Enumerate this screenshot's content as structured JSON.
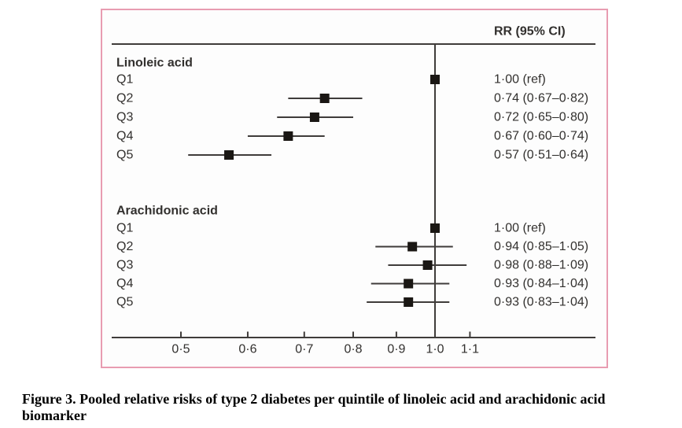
{
  "chart_data": {
    "type": "forest",
    "title": "",
    "column_header": "RR (95% CI)",
    "x_axis": {
      "scale": "log",
      "ticks": [
        0.5,
        0.6,
        0.7,
        0.8,
        0.9,
        1.0,
        1.1
      ],
      "tick_labels": [
        "0·5",
        "0·6",
        "0·7",
        "0·8",
        "0·9",
        "1·0",
        "1·1"
      ],
      "ref_line": 1.0,
      "range": [
        0.41,
        1.55
      ],
      "grid": false
    },
    "groups": [
      {
        "name": "Linoleic acid",
        "rows": [
          {
            "label": "Q1",
            "rr": 1.0,
            "lo": null,
            "hi": null,
            "value_text": "1·00 (ref)"
          },
          {
            "label": "Q2",
            "rr": 0.74,
            "lo": 0.67,
            "hi": 0.82,
            "value_text": "0·74 (0·67–0·82)"
          },
          {
            "label": "Q3",
            "rr": 0.72,
            "lo": 0.65,
            "hi": 0.8,
            "value_text": "0·72 (0·65–0·80)"
          },
          {
            "label": "Q4",
            "rr": 0.67,
            "lo": 0.6,
            "hi": 0.74,
            "value_text": "0·67 (0·60–0·74)"
          },
          {
            "label": "Q5",
            "rr": 0.57,
            "lo": 0.51,
            "hi": 0.64,
            "value_text": "0·57 (0·51–0·64)"
          }
        ]
      },
      {
        "name": "Arachidonic acid",
        "rows": [
          {
            "label": "Q1",
            "rr": 1.0,
            "lo": null,
            "hi": null,
            "value_text": "1·00 (ref)"
          },
          {
            "label": "Q2",
            "rr": 0.94,
            "lo": 0.85,
            "hi": 1.05,
            "value_text": "0·94 (0·85–1·05)"
          },
          {
            "label": "Q3",
            "rr": 0.98,
            "lo": 0.88,
            "hi": 1.09,
            "value_text": "0·98 (0·88–1·09)"
          },
          {
            "label": "Q4",
            "rr": 0.93,
            "lo": 0.84,
            "hi": 1.04,
            "value_text": "0·93 (0·84–1·04)"
          },
          {
            "label": "Q5",
            "rr": 0.93,
            "lo": 0.83,
            "hi": 1.04,
            "value_text": "0·93 (0·83–1·04)"
          }
        ]
      }
    ]
  },
  "caption": {
    "line1": "Figure 3. Pooled relative risks of type 2 diabetes per quintile of linoleic acid and arachidonic acid",
    "line2": "biomarker"
  },
  "colors": {
    "border_pink": "#e89cb1",
    "ink": "#3f3c3a",
    "text": "#32302e",
    "marker": "#1a1714"
  }
}
